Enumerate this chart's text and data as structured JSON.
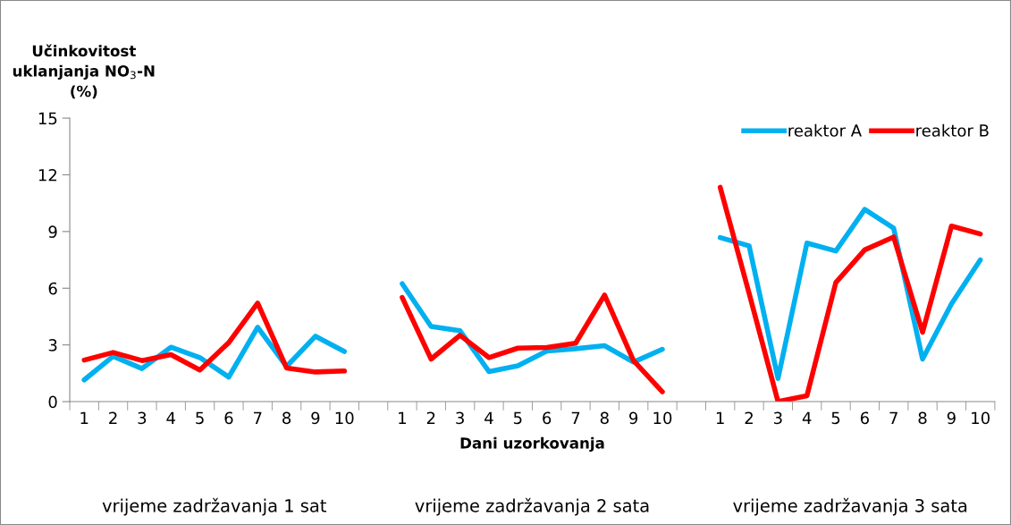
{
  "chart_data": {
    "type": "line",
    "ylabel": "Učinkovitost\nuklanjanja NO$_{3}$-N\n(%)",
    "xlabel": "Dani uzorkovanja",
    "categories": [
      "1",
      "2",
      "3",
      "4",
      "5",
      "6",
      "7",
      "8",
      "9",
      "10",
      null,
      "1",
      "2",
      "3",
      "4",
      "5",
      "6",
      "7",
      "8",
      "9",
      "10",
      null,
      "1",
      "2",
      "3",
      "4",
      "5",
      "6",
      "7",
      "8",
      "9",
      "10"
    ],
    "series": [
      {
        "name": "reaktor A",
        "color": "#00b0f0",
        "values": [
          1.15,
          2.4,
          1.75,
          2.88,
          2.33,
          1.3,
          3.94,
          1.86,
          3.46,
          2.65,
          null,
          6.24,
          3.98,
          3.75,
          1.59,
          1.9,
          2.68,
          2.8,
          2.96,
          2.09,
          2.77,
          null,
          8.68,
          8.24,
          1.23,
          8.39,
          7.97,
          10.17,
          9.18,
          2.25,
          5.17,
          7.5
        ]
      },
      {
        "name": "reaktor B",
        "color": "#ff0000",
        "values": [
          2.2,
          2.6,
          2.17,
          2.49,
          1.67,
          3.12,
          5.21,
          1.78,
          1.57,
          1.62,
          null,
          5.51,
          2.25,
          3.51,
          2.33,
          2.83,
          2.87,
          3.09,
          5.64,
          2.17,
          0.52,
          null,
          11.34,
          5.73,
          0,
          0.31,
          6.3,
          8.03,
          8.71,
          3.67,
          9.29,
          8.87
        ]
      }
    ],
    "ylim": [
      0,
      15
    ],
    "yticks": [
      0,
      3,
      6,
      9,
      12,
      15
    ],
    "grid": false,
    "legend": "top right",
    "marker": "none",
    "line_style": "solid",
    "annotations": [
      "vrijeme zadržavanja 1 sat",
      "vrijeme zadržavanja 2 sata",
      "vrijeme zadržavanja 3 sata"
    ]
  }
}
